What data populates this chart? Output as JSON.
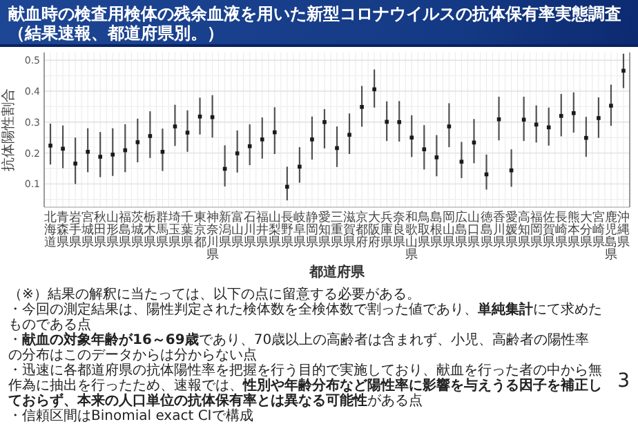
{
  "chart_data": {
    "type": "scatter",
    "title": "献血時の検査用検体の残余血液を用いた新型コロナウイルスの抗体保有率実態調査",
    "subtitle": "（結果速報、都道府県別。）",
    "xlabel": "都道府県",
    "ylabel": "抗体陽性割合",
    "categories": [
      "北海道",
      "青森県",
      "岩手県",
      "宮城県",
      "秋田県",
      "山形県",
      "福島県",
      "茨城県",
      "栃木県",
      "群馬県",
      "埼玉県",
      "千葉県",
      "東京都",
      "神奈川県",
      "新潟県",
      "富山県",
      "石川県",
      "福井県",
      "山梨県",
      "長野県",
      "岐阜県",
      "静岡県",
      "愛知県",
      "三重県",
      "滋賀県",
      "京都府",
      "大阪府",
      "兵庫県",
      "奈良県",
      "和歌山県",
      "鳥取県",
      "島根県",
      "岡山県",
      "広島県",
      "山口県",
      "徳島県",
      "香川県",
      "愛媛県",
      "高知県",
      "福岡県",
      "佐賀県",
      "長崎県",
      "熊本県",
      "大分県",
      "宮崎県",
      "鹿児島県",
      "沖縄県"
    ],
    "values": [
      0.224,
      0.214,
      0.166,
      0.204,
      0.188,
      0.195,
      0.209,
      0.235,
      0.255,
      0.204,
      0.286,
      0.266,
      0.318,
      0.316,
      0.149,
      0.199,
      0.222,
      0.244,
      0.267,
      0.091,
      0.156,
      0.244,
      0.3,
      0.216,
      0.259,
      0.349,
      0.406,
      0.301,
      0.3,
      0.25,
      0.212,
      0.186,
      0.286,
      0.172,
      0.234,
      0.131,
      0.309,
      0.144,
      0.308,
      0.292,
      0.283,
      0.32,
      0.329,
      0.249,
      0.313,
      0.353,
      0.466
    ],
    "errors": [
      [
        0.163,
        0.295
      ],
      [
        0.151,
        0.289
      ],
      [
        0.1,
        0.25
      ],
      [
        0.138,
        0.28
      ],
      [
        0.122,
        0.268
      ],
      [
        0.126,
        0.28
      ],
      [
        0.138,
        0.293
      ],
      [
        0.17,
        0.311
      ],
      [
        0.184,
        0.335
      ],
      [
        0.142,
        0.279
      ],
      [
        0.223,
        0.356
      ],
      [
        0.204,
        0.338
      ],
      [
        0.26,
        0.379
      ],
      [
        0.25,
        0.387
      ],
      [
        0.092,
        0.225
      ],
      [
        0.137,
        0.273
      ],
      [
        0.161,
        0.293
      ],
      [
        0.182,
        0.315
      ],
      [
        0.197,
        0.348
      ],
      [
        0.047,
        0.156
      ],
      [
        0.104,
        0.219
      ],
      [
        0.179,
        0.318
      ],
      [
        0.215,
        0.342
      ],
      [
        0.155,
        0.286
      ],
      [
        0.197,
        0.328
      ],
      [
        0.285,
        0.417
      ],
      [
        0.347,
        0.47
      ],
      [
        0.239,
        0.367
      ],
      [
        0.237,
        0.368
      ],
      [
        0.187,
        0.322
      ],
      [
        0.147,
        0.29
      ],
      [
        0.125,
        0.258
      ],
      [
        0.219,
        0.361
      ],
      [
        0.119,
        0.236
      ],
      [
        0.167,
        0.31
      ],
      [
        0.082,
        0.195
      ],
      [
        0.241,
        0.382
      ],
      [
        0.091,
        0.212
      ],
      [
        0.239,
        0.382
      ],
      [
        0.234,
        0.354
      ],
      [
        0.224,
        0.347
      ],
      [
        0.254,
        0.391
      ],
      [
        0.266,
        0.396
      ],
      [
        0.188,
        0.317
      ],
      [
        0.249,
        0.38
      ],
      [
        0.288,
        0.421
      ],
      [
        0.41,
        0.521
      ]
    ],
    "color": "#1a1a1a",
    "marker": "square",
    "grid": true,
    "ylim": [
      0.025,
      0.525
    ],
    "yticks": [
      {
        "value": 0.05,
        "label": null
      },
      0.1,
      {
        "value": 0.15,
        "label": null
      },
      0.2,
      {
        "value": 0.25,
        "label": null
      },
      0.3,
      {
        "value": 0.35,
        "label": null
      },
      0.4,
      {
        "value": 0.45,
        "label": null
      },
      0.5
    ],
    "annotations": [
      "（※）結果の解釈に当たっては、以下の点に留意する必要がある。",
      "・今回の測定結果は、陽性判定された検体数を全検体数で割った値であり、**単純集計**にて求めたものである点",
      "・**献血の対象年齢が16～69歳**であり、70歳以上の高齢者は含まれず、小児、高齢者の陽性率の分布はこのデータからは分からない点",
      "・迅速に各都道府県の抗体陽性率を把握を行う目的で実施しており、献血を行った者の中から無作為に抽出を行ったため、速報では、**性別や年齢分布など陽性率に影響を与えうる因子を補正しておらず、本来の人口単位の抗体保有率とは異なる可能性**がある点",
      "・信頼区間はBinomial exact CIで構成",
      "3"
    ]
  }
}
